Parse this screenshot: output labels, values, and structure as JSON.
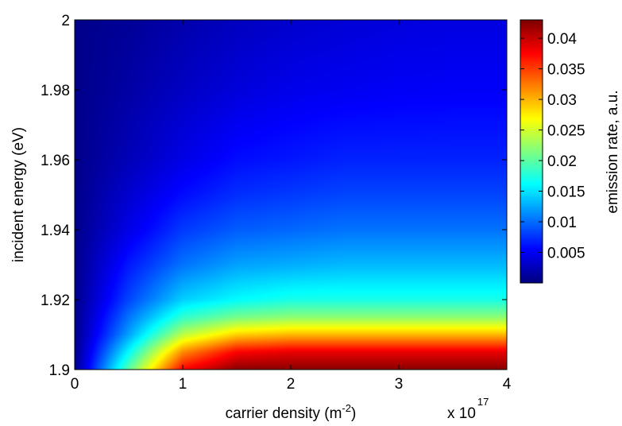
{
  "chart_data": {
    "type": "heatmap",
    "title": "",
    "xlabel": "carrier density (m",
    "xlabel_superscript": "-2",
    "xlabel_suffix": ")",
    "x_multiplier_label": "x 10",
    "x_multiplier_exponent": "17",
    "ylabel": "incident energy (eV)",
    "colorbar_label": "emission rate, a.u.",
    "colormap": "jet",
    "xlim": [
      0,
      4
    ],
    "ylim": [
      1.9,
      2.0
    ],
    "clim": [
      0,
      0.043
    ],
    "x_ticks": [
      {
        "value": 0,
        "label": "0"
      },
      {
        "value": 1,
        "label": "1"
      },
      {
        "value": 2,
        "label": "2"
      },
      {
        "value": 3,
        "label": "3"
      },
      {
        "value": 4,
        "label": "4"
      }
    ],
    "y_ticks": [
      {
        "value": 1.9,
        "label": "1.9"
      },
      {
        "value": 1.92,
        "label": "1.92"
      },
      {
        "value": 1.94,
        "label": "1.94"
      },
      {
        "value": 1.96,
        "label": "1.96"
      },
      {
        "value": 1.98,
        "label": "1.98"
      },
      {
        "value": 2.0,
        "label": "2"
      }
    ],
    "colorbar_ticks": [
      {
        "value": 0.005,
        "label": "0.005"
      },
      {
        "value": 0.01,
        "label": "0.01"
      },
      {
        "value": 0.015,
        "label": "0.015"
      },
      {
        "value": 0.02,
        "label": "0.02"
      },
      {
        "value": 0.025,
        "label": "0.025"
      },
      {
        "value": 0.03,
        "label": "0.03"
      },
      {
        "value": 0.035,
        "label": "0.035"
      },
      {
        "value": 0.04,
        "label": "0.04"
      }
    ],
    "grid": false,
    "rows": [
      {
        "y": 1.9,
        "values": [
          0.0,
          0.02,
          0.038,
          0.043,
          0.043,
          0.043,
          0.043,
          0.043,
          0.043
        ]
      },
      {
        "y": 1.905,
        "values": [
          0.0,
          0.016,
          0.032,
          0.038,
          0.039,
          0.039,
          0.039,
          0.039,
          0.039
        ]
      },
      {
        "y": 1.91,
        "values": [
          0.0,
          0.012,
          0.024,
          0.029,
          0.03,
          0.03,
          0.03,
          0.03,
          0.03
        ]
      },
      {
        "y": 1.915,
        "values": [
          0.0,
          0.01,
          0.018,
          0.021,
          0.022,
          0.022,
          0.022,
          0.022,
          0.022
        ]
      },
      {
        "y": 1.92,
        "values": [
          0.0,
          0.008,
          0.014,
          0.016,
          0.017,
          0.017,
          0.017,
          0.017,
          0.017
        ]
      },
      {
        "y": 1.93,
        "values": [
          0.0,
          0.006,
          0.01,
          0.012,
          0.0125,
          0.013,
          0.013,
          0.013,
          0.013
        ]
      },
      {
        "y": 1.94,
        "values": [
          0.0,
          0.004,
          0.0075,
          0.009,
          0.0095,
          0.01,
          0.01,
          0.01,
          0.01
        ]
      },
      {
        "y": 1.95,
        "values": [
          0.0,
          0.003,
          0.0055,
          0.007,
          0.0075,
          0.008,
          0.008,
          0.008,
          0.008
        ]
      },
      {
        "y": 1.96,
        "values": [
          0.0,
          0.002,
          0.004,
          0.0055,
          0.006,
          0.0065,
          0.0065,
          0.0065,
          0.0065
        ]
      },
      {
        "y": 1.98,
        "values": [
          0.0,
          0.0012,
          0.0025,
          0.0035,
          0.0042,
          0.0045,
          0.0047,
          0.0048,
          0.0048
        ]
      },
      {
        "y": 2.0,
        "values": [
          0.0,
          0.0006,
          0.0015,
          0.0023,
          0.0029,
          0.0033,
          0.0036,
          0.0037,
          0.0037
        ]
      }
    ],
    "row_x": [
      0,
      0.5,
      1,
      1.5,
      2,
      2.5,
      3,
      3.5,
      4
    ]
  }
}
